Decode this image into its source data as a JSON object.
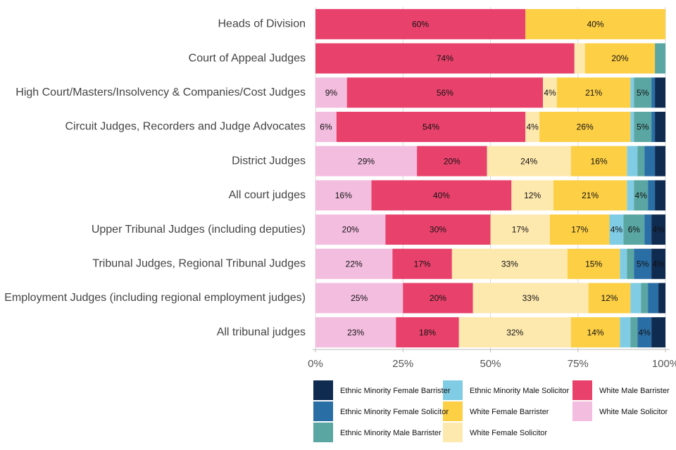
{
  "chart_data": {
    "type": "stacked-bar-horizontal",
    "categories": [
      "Heads of Division",
      "Court of Appeal Judges",
      "High Court/Masters/Insolvency & Companies/Cost Judges",
      "Circuit Judges, Recorders and Judge Advocates",
      "District Judges",
      "All court judges",
      "Upper Tribunal Judges (including deputies)",
      "Tribunal Judges, Regional Tribunal Judges",
      "Employment Judges (including regional employment judges)",
      "All tribunal judges"
    ],
    "series": [
      {
        "name": "White Male Solicitor",
        "color": "#f3bddf",
        "values": [
          0,
          0,
          9,
          6,
          29,
          16,
          20,
          22,
          25,
          23
        ],
        "value_labels": [
          null,
          null,
          "9%",
          "6%",
          "29%",
          "16%",
          "20%",
          "22%",
          "25%",
          "23%"
        ]
      },
      {
        "name": "White Male Barrister",
        "color": "#e8426c",
        "values": [
          60,
          74,
          56,
          54,
          20,
          40,
          30,
          17,
          20,
          18
        ],
        "value_labels": [
          "60%",
          "74%",
          "56%",
          "54%",
          "20%",
          "40%",
          "30%",
          "17%",
          "20%",
          "18%"
        ]
      },
      {
        "name": "White Female Solicitor",
        "color": "#fde8ae",
        "values": [
          0,
          3,
          4,
          4,
          24,
          12,
          17,
          33,
          33,
          32
        ],
        "value_labels": [
          null,
          null,
          "4%",
          "4%",
          "24%",
          "12%",
          "17%",
          "33%",
          "33%",
          "32%"
        ]
      },
      {
        "name": "White Female Barrister",
        "color": "#fdcf45",
        "values": [
          40,
          20,
          21,
          26,
          16,
          21,
          17,
          15,
          12,
          14
        ],
        "value_labels": [
          "40%",
          "20%",
          "21%",
          "26%",
          "16%",
          "21%",
          "17%",
          "15%",
          "12%",
          "14%"
        ]
      },
      {
        "name": "Ethnic Minority Male Solicitor",
        "color": "#80cce4",
        "values": [
          0,
          0,
          1,
          1,
          3,
          2,
          4,
          2,
          3,
          3
        ],
        "value_labels": [
          null,
          null,
          null,
          null,
          null,
          null,
          "4%",
          null,
          null,
          null
        ]
      },
      {
        "name": "Ethnic Minority Male Barrister",
        "color": "#5aa6a2",
        "values": [
          0,
          3,
          5,
          5,
          2,
          4,
          6,
          2,
          2,
          2
        ],
        "value_labels": [
          null,
          null,
          "5%",
          "5%",
          null,
          "4%",
          "6%",
          null,
          null,
          null
        ]
      },
      {
        "name": "Ethnic Minority Female Solicitor",
        "color": "#2a6ea6",
        "values": [
          0,
          0,
          1,
          1,
          3,
          2,
          2,
          5,
          3,
          4
        ],
        "value_labels": [
          null,
          null,
          null,
          null,
          null,
          null,
          null,
          "5%",
          null,
          "4%"
        ]
      },
      {
        "name": "Ethnic Minority Female Barrister",
        "color": "#0f2b50",
        "values": [
          0,
          0,
          3,
          3,
          3,
          3,
          4,
          4,
          2,
          4
        ],
        "value_labels": [
          null,
          null,
          null,
          null,
          null,
          null,
          "4%",
          "4%",
          null,
          null
        ]
      }
    ],
    "xlim": [
      0,
      100
    ],
    "xticks": [
      {
        "value": 0,
        "label": "0%"
      },
      {
        "value": 25,
        "label": "25%"
      },
      {
        "value": 50,
        "label": "50%"
      },
      {
        "value": 75,
        "label": "75%"
      },
      {
        "value": 100,
        "label": "100%"
      }
    ],
    "grid": true
  }
}
